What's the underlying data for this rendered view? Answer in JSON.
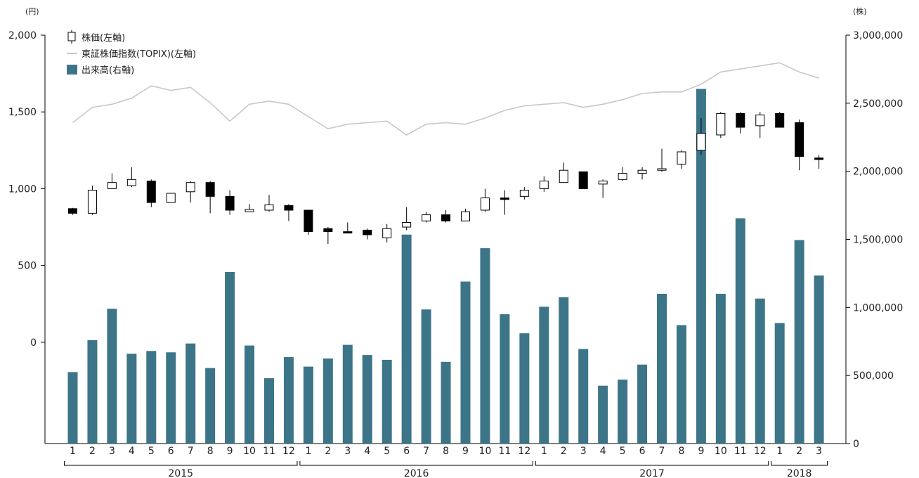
{
  "chart_data": {
    "type": "candlestick+bar+line",
    "left_unit": "(円)",
    "right_unit": "(株)",
    "left_axis": {
      "range": [
        -660,
        2000
      ],
      "ticks": [
        2000,
        1500,
        1000,
        500,
        0
      ],
      "tick_labels": [
        "2,000",
        "1,500",
        "1,000",
        "500",
        "0"
      ]
    },
    "right_axis": {
      "range": [
        0,
        3000000
      ],
      "ticks": [
        3000000,
        2500000,
        2000000,
        1500000,
        1000000,
        500000,
        0
      ],
      "tick_labels": [
        "3,000,000",
        "2,500,000",
        "2,000,000",
        "1,500,000",
        "1,000,000",
        "500,000",
        "0"
      ]
    },
    "legend": [
      {
        "name": "株価(左軸)",
        "marker": "candle"
      },
      {
        "name": "東証株価指数(TOPIX)(左軸)",
        "marker": "line"
      },
      {
        "name": "出来高(右軸)",
        "marker": "bar"
      }
    ],
    "months": [
      "1",
      "2",
      "3",
      "4",
      "5",
      "6",
      "7",
      "8",
      "9",
      "10",
      "11",
      "12",
      "1",
      "2",
      "3",
      "4",
      "5",
      "6",
      "7",
      "8",
      "9",
      "10",
      "11",
      "12",
      "1",
      "2",
      "3",
      "4",
      "5",
      "6",
      "7",
      "8",
      "9",
      "10",
      "11",
      "12",
      "1",
      "2",
      "3"
    ],
    "years": [
      {
        "label": "2015",
        "start": 0,
        "end": 11
      },
      {
        "label": "2016",
        "start": 12,
        "end": 23
      },
      {
        "label": "2017",
        "start": 24,
        "end": 35
      },
      {
        "label": "2018",
        "start": 36,
        "end": 38
      }
    ],
    "candles": [
      {
        "open": 870,
        "close": 840,
        "high": 875,
        "low": 830
      },
      {
        "open": 840,
        "close": 990,
        "high": 1020,
        "low": 830
      },
      {
        "open": 1000,
        "close": 1040,
        "high": 1100,
        "low": 1000
      },
      {
        "open": 1020,
        "close": 1060,
        "high": 1140,
        "low": 1010
      },
      {
        "open": 1050,
        "close": 910,
        "high": 1060,
        "low": 880
      },
      {
        "open": 910,
        "close": 970,
        "high": 970,
        "low": 910
      },
      {
        "open": 980,
        "close": 1040,
        "high": 1050,
        "low": 910
      },
      {
        "open": 1040,
        "close": 950,
        "high": 1050,
        "low": 840
      },
      {
        "open": 950,
        "close": 860,
        "high": 990,
        "low": 830
      },
      {
        "open": 850,
        "close": 865,
        "high": 900,
        "low": 850
      },
      {
        "open": 860,
        "close": 895,
        "high": 960,
        "low": 850
      },
      {
        "open": 890,
        "close": 860,
        "high": 900,
        "low": 790
      },
      {
        "open": 860,
        "close": 720,
        "high": 860,
        "low": 700
      },
      {
        "open": 740,
        "close": 720,
        "high": 750,
        "low": 640
      },
      {
        "open": 720,
        "close": 715,
        "high": 780,
        "low": 710
      },
      {
        "open": 730,
        "close": 700,
        "high": 740,
        "low": 670
      },
      {
        "open": 680,
        "close": 740,
        "high": 770,
        "low": 650
      },
      {
        "open": 750,
        "close": 780,
        "high": 880,
        "low": 730
      },
      {
        "open": 790,
        "close": 830,
        "high": 850,
        "low": 780
      },
      {
        "open": 830,
        "close": 790,
        "high": 860,
        "low": 780
      },
      {
        "open": 790,
        "close": 850,
        "high": 870,
        "low": 790
      },
      {
        "open": 860,
        "close": 940,
        "high": 1000,
        "low": 850
      },
      {
        "open": 940,
        "close": 930,
        "high": 990,
        "low": 830
      },
      {
        "open": 950,
        "close": 990,
        "high": 1010,
        "low": 930
      },
      {
        "open": 1000,
        "close": 1050,
        "high": 1080,
        "low": 980
      },
      {
        "open": 1040,
        "close": 1120,
        "high": 1170,
        "low": 1040
      },
      {
        "open": 1110,
        "close": 1000,
        "high": 1110,
        "low": 1000
      },
      {
        "open": 1030,
        "close": 1050,
        "high": 1060,
        "low": 940
      },
      {
        "open": 1060,
        "close": 1100,
        "high": 1140,
        "low": 1050
      },
      {
        "open": 1100,
        "close": 1120,
        "high": 1140,
        "low": 1060
      },
      {
        "open": 1120,
        "close": 1130,
        "high": 1260,
        "low": 1110
      },
      {
        "open": 1160,
        "close": 1240,
        "high": 1250,
        "low": 1130
      },
      {
        "open": 1250,
        "close": 1360,
        "high": 1460,
        "low": 1220
      },
      {
        "open": 1350,
        "close": 1490,
        "high": 1500,
        "low": 1330
      },
      {
        "open": 1490,
        "close": 1400,
        "high": 1500,
        "low": 1360
      },
      {
        "open": 1410,
        "close": 1480,
        "high": 1500,
        "low": 1330
      },
      {
        "open": 1490,
        "close": 1400,
        "high": 1500,
        "low": 1400
      },
      {
        "open": 1430,
        "close": 1210,
        "high": 1450,
        "low": 1120
      },
      {
        "open": 1200,
        "close": 1190,
        "high": 1220,
        "low": 1130
      }
    ],
    "topix": [
      1430,
      1530,
      1550,
      1590,
      1670,
      1640,
      1660,
      1560,
      1440,
      1550,
      1570,
      1550,
      1470,
      1390,
      1420,
      1430,
      1440,
      1350,
      1420,
      1430,
      1420,
      1460,
      1510,
      1540,
      1550,
      1560,
      1530,
      1550,
      1580,
      1620,
      1630,
      1630,
      1680,
      1760,
      1780,
      1800,
      1820,
      1760,
      1720
    ],
    "volume": [
      525000,
      760000,
      990000,
      660000,
      680000,
      670000,
      735000,
      555000,
      1260000,
      720000,
      480000,
      635000,
      565000,
      625000,
      725000,
      650000,
      615000,
      1535000,
      985000,
      600000,
      1190000,
      1435000,
      950000,
      810000,
      1005000,
      1075000,
      695000,
      425000,
      470000,
      580000,
      1100000,
      870000,
      2605000,
      1100000,
      1655000,
      1065000,
      885000,
      1495000,
      1235000
    ]
  }
}
